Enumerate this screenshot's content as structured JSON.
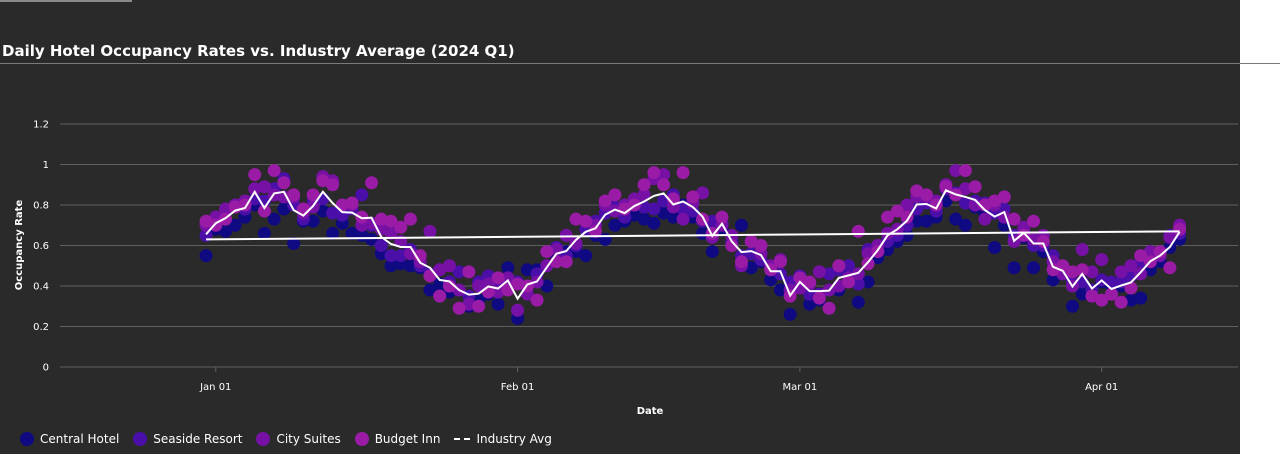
{
  "chart_data": {
    "type": "scatter",
    "title": "Daily Hotel Occupancy Rates vs. Industry Average (2024 Q1)",
    "xlabel": "Date",
    "ylabel": "Occupancy Rate",
    "x_range": [
      "2023-12-16",
      "2024-04-15"
    ],
    "ylim": [
      0,
      1.2
    ],
    "y_ticks": [
      0,
      0.2,
      0.4,
      0.6,
      0.8,
      1,
      1.2
    ],
    "y_tick_labels": [
      "0",
      "0.2",
      "0.4",
      "0.6",
      "0.8",
      "1",
      "1.2"
    ],
    "x_ticks": [
      {
        "date": "2024-01-01",
        "label": "Jan 01"
      },
      {
        "date": "2024-02-01",
        "label": "Feb 01"
      },
      {
        "date": "2024-03-01",
        "label": "Mar 01"
      },
      {
        "date": "2024-04-01",
        "label": "Apr 01"
      }
    ],
    "grid": true,
    "legend_position": "bottom-left",
    "series_order": [
      "Central Hotel",
      "Seaside Resort",
      "City Suites",
      "Budget Inn",
      "Industry Avg"
    ],
    "hotel_points": [
      [
        "2023-12-31",
        0.55,
        0.65,
        0.7,
        0.72
      ],
      [
        "2024-01-01",
        0.68,
        0.72,
        0.74,
        0.7
      ],
      [
        "2024-01-02",
        0.67,
        0.76,
        0.78,
        0.73
      ],
      [
        "2024-01-03",
        0.7,
        0.8,
        0.8,
        0.79
      ],
      [
        "2024-01-04",
        0.74,
        0.78,
        0.82,
        0.8
      ],
      [
        "2024-01-05",
        0.8,
        0.83,
        0.88,
        0.95
      ],
      [
        "2024-01-06",
        0.66,
        0.82,
        0.89,
        0.77
      ],
      [
        "2024-01-07",
        0.73,
        0.88,
        0.85,
        0.97
      ],
      [
        "2024-01-08",
        0.78,
        0.93,
        0.84,
        0.91
      ],
      [
        "2024-01-09",
        0.61,
        0.8,
        0.84,
        0.85
      ],
      [
        "2024-01-10",
        0.72,
        0.73,
        0.76,
        0.78
      ],
      [
        "2024-01-11",
        0.72,
        0.82,
        0.79,
        0.85
      ],
      [
        "2024-01-12",
        0.77,
        0.83,
        0.94,
        0.92
      ],
      [
        "2024-01-13",
        0.66,
        0.76,
        0.92,
        0.9
      ],
      [
        "2024-01-14",
        0.71,
        0.75,
        0.8,
        0.8
      ],
      [
        "2024-01-15",
        0.66,
        0.78,
        0.8,
        0.81
      ],
      [
        "2024-01-16",
        0.65,
        0.85,
        0.7,
        0.74
      ],
      [
        "2024-01-17",
        0.63,
        0.7,
        0.71,
        0.91
      ],
      [
        "2024-01-18",
        0.56,
        0.6,
        0.68,
        0.73
      ],
      [
        "2024-01-19",
        0.5,
        0.55,
        0.66,
        0.72
      ],
      [
        "2024-01-20",
        0.51,
        0.55,
        0.62,
        0.69
      ],
      [
        "2024-01-21",
        0.5,
        0.58,
        0.56,
        0.73
      ],
      [
        "2024-01-22",
        0.49,
        0.5,
        0.52,
        0.55
      ],
      [
        "2024-01-23",
        0.38,
        0.46,
        0.67,
        0.45
      ],
      [
        "2024-01-24",
        0.41,
        0.48,
        0.48,
        0.35
      ],
      [
        "2024-01-25",
        0.37,
        0.42,
        0.5,
        0.4
      ],
      [
        "2024-01-26",
        0.38,
        0.47,
        0.38,
        0.29
      ],
      [
        "2024-01-27",
        0.3,
        0.35,
        0.31,
        0.47
      ],
      [
        "2024-01-28",
        0.33,
        0.42,
        0.4,
        0.3
      ],
      [
        "2024-01-29",
        0.36,
        0.45,
        0.41,
        0.37
      ],
      [
        "2024-01-30",
        0.31,
        0.43,
        0.37,
        0.44
      ],
      [
        "2024-01-31",
        0.49,
        0.4,
        0.44,
        0.38
      ],
      [
        "2024-02-01",
        0.24,
        0.42,
        0.28,
        0.41
      ],
      [
        "2024-02-02",
        0.48,
        0.39,
        0.36,
        0.4
      ],
      [
        "2024-02-03",
        0.48,
        0.46,
        0.42,
        0.33
      ],
      [
        "2024-02-04",
        0.4,
        0.5,
        0.5,
        0.57
      ],
      [
        "2024-02-05",
        0.55,
        0.59,
        0.58,
        0.52
      ],
      [
        "2024-02-06",
        0.57,
        0.55,
        0.65,
        0.52
      ],
      [
        "2024-02-07",
        0.57,
        0.6,
        0.61,
        0.73
      ],
      [
        "2024-02-08",
        0.55,
        0.68,
        0.72,
        0.72
      ],
      [
        "2024-02-09",
        0.65,
        0.72,
        0.7,
        0.67
      ],
      [
        "2024-02-10",
        0.63,
        0.76,
        0.8,
        0.82
      ],
      [
        "2024-02-11",
        0.7,
        0.79,
        0.77,
        0.85
      ],
      [
        "2024-02-12",
        0.72,
        0.74,
        0.8,
        0.78
      ],
      [
        "2024-02-13",
        0.75,
        0.8,
        0.83,
        0.8
      ],
      [
        "2024-02-14",
        0.73,
        0.79,
        0.85,
        0.9
      ],
      [
        "2024-02-15",
        0.71,
        0.78,
        0.93,
        0.96
      ],
      [
        "2024-02-16",
        0.76,
        0.82,
        0.95,
        0.9
      ],
      [
        "2024-02-17",
        0.74,
        0.85,
        0.79,
        0.83
      ],
      [
        "2024-02-18",
        0.8,
        0.78,
        0.73,
        0.96
      ],
      [
        "2024-02-19",
        0.74,
        0.77,
        0.81,
        0.84
      ],
      [
        "2024-02-20",
        0.66,
        0.72,
        0.86,
        0.73
      ],
      [
        "2024-02-21",
        0.57,
        0.72,
        0.64,
        0.66
      ],
      [
        "2024-02-22",
        0.68,
        0.71,
        0.7,
        0.74
      ],
      [
        "2024-02-23",
        0.61,
        0.62,
        0.65,
        0.6
      ],
      [
        "2024-02-24",
        0.7,
        0.55,
        0.5,
        0.52
      ],
      [
        "2024-02-25",
        0.49,
        0.56,
        0.62,
        0.62
      ],
      [
        "2024-02-26",
        0.52,
        0.53,
        0.56,
        0.6
      ],
      [
        "2024-02-27",
        0.43,
        0.48,
        0.5,
        0.48
      ],
      [
        "2024-02-28",
        0.38,
        0.46,
        0.53,
        0.52
      ],
      [
        "2024-02-29",
        0.26,
        0.42,
        0.38,
        0.35
      ],
      [
        "2024-03-01",
        0.4,
        0.45,
        0.39,
        0.44
      ],
      [
        "2024-03-02",
        0.31,
        0.36,
        0.41,
        0.42
      ],
      [
        "2024-03-03",
        0.33,
        0.36,
        0.47,
        0.34
      ],
      [
        "2024-03-04",
        0.38,
        0.46,
        0.38,
        0.29
      ],
      [
        "2024-03-05",
        0.38,
        0.48,
        0.4,
        0.5
      ],
      [
        "2024-03-06",
        0.45,
        0.5,
        0.44,
        0.42
      ],
      [
        "2024-03-07",
        0.32,
        0.41,
        0.46,
        0.67
      ],
      [
        "2024-03-08",
        0.42,
        0.58,
        0.56,
        0.51
      ],
      [
        "2024-03-09",
        0.54,
        0.6,
        0.6,
        0.57
      ],
      [
        "2024-03-10",
        0.58,
        0.62,
        0.66,
        0.74
      ],
      [
        "2024-03-11",
        0.62,
        0.65,
        0.68,
        0.77
      ],
      [
        "2024-03-12",
        0.65,
        0.7,
        0.8,
        0.74
      ],
      [
        "2024-03-13",
        0.72,
        0.78,
        0.84,
        0.87
      ],
      [
        "2024-03-14",
        0.72,
        0.81,
        0.84,
        0.85
      ],
      [
        "2024-03-15",
        0.74,
        0.77,
        0.82,
        0.8
      ],
      [
        "2024-03-16",
        0.82,
        0.88,
        0.9,
        0.89
      ],
      [
        "2024-03-17",
        0.73,
        0.86,
        0.97,
        0.85
      ],
      [
        "2024-03-18",
        0.7,
        0.81,
        0.88,
        0.97
      ],
      [
        "2024-03-19",
        0.79,
        0.82,
        0.8,
        0.89
      ],
      [
        "2024-03-20",
        0.76,
        0.81,
        0.73,
        0.8
      ],
      [
        "2024-03-21",
        0.59,
        0.76,
        0.8,
        0.82
      ],
      [
        "2024-03-22",
        0.7,
        0.78,
        0.74,
        0.84
      ],
      [
        "2024-03-23",
        0.49,
        0.65,
        0.62,
        0.73
      ],
      [
        "2024-03-24",
        0.64,
        0.67,
        0.69,
        0.65
      ],
      [
        "2024-03-25",
        0.49,
        0.6,
        0.63,
        0.72
      ],
      [
        "2024-03-26",
        0.57,
        0.6,
        0.65,
        0.62
      ],
      [
        "2024-03-27",
        0.43,
        0.55,
        0.52,
        0.48
      ],
      [
        "2024-03-28",
        0.46,
        0.48,
        0.46,
        0.5
      ],
      [
        "2024-03-29",
        0.3,
        0.42,
        0.4,
        0.47
      ],
      [
        "2024-03-30",
        0.36,
        0.42,
        0.58,
        0.48
      ],
      [
        "2024-03-31",
        0.35,
        0.38,
        0.47,
        0.35
      ],
      [
        "2024-04-01",
        0.42,
        0.43,
        0.53,
        0.33
      ],
      [
        "2024-04-02",
        0.4,
        0.42,
        0.36,
        0.36
      ],
      [
        "2024-04-03",
        0.4,
        0.42,
        0.47,
        0.32
      ],
      [
        "2024-04-04",
        0.33,
        0.45,
        0.5,
        0.39
      ],
      [
        "2024-04-05",
        0.34,
        0.52,
        0.46,
        0.55
      ],
      [
        "2024-04-06",
        0.48,
        0.52,
        0.57,
        0.52
      ],
      [
        "2024-04-07",
        0.52,
        0.56,
        0.55,
        0.57
      ],
      [
        "2024-04-08",
        0.59,
        0.65,
        0.64,
        0.49
      ],
      [
        "2024-04-09",
        0.63,
        0.66,
        0.7,
        0.68
      ]
    ],
    "industry_avg": [
      [
        "2023-12-31",
        0.63
      ],
      [
        "2024-04-09",
        0.67
      ]
    ]
  },
  "colors": {
    "panel_bg": "#2a2a2a",
    "grid": "#606060",
    "Central Hotel": "#0f0a82",
    "Seaside Resort": "#4a0fa8",
    "City Suites": "#7711a6",
    "Budget Inn": "#9a1ba6",
    "Industry Avg": "#ffffff"
  }
}
